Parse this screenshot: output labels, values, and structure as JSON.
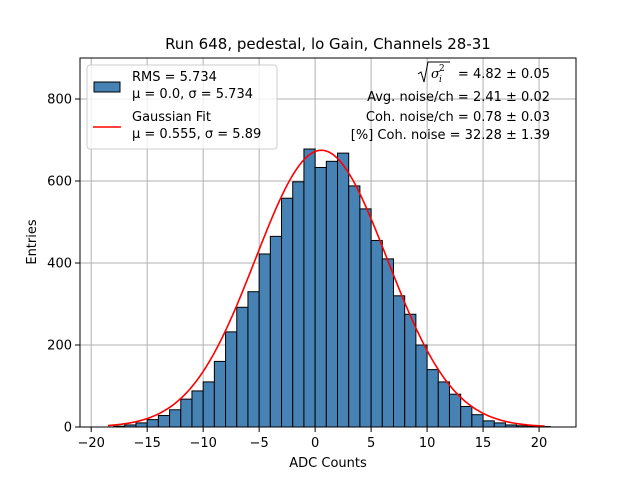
{
  "chart_data": {
    "type": "bar",
    "title": "Run 648, pedestal, lo Gain, Channels 28-31",
    "xlabel": "ADC Counts",
    "ylabel": "Entries",
    "xlim": [
      -21,
      23.3
    ],
    "ylim": [
      0,
      900
    ],
    "xticks": [
      -20,
      -15,
      -10,
      -5,
      0,
      5,
      10,
      15,
      20
    ],
    "yticks": [
      0,
      200,
      400,
      600,
      800
    ],
    "grid": true,
    "legend_position": "top-left",
    "histogram": {
      "name": "RMS = 5.734",
      "stats_label": "μ = 0.0, σ = 5.734",
      "color": "#4682b4",
      "bin_start": -18,
      "bin_width": 1,
      "counts": [
        2,
        5,
        10,
        18,
        28,
        42,
        68,
        88,
        110,
        160,
        232,
        292,
        330,
        422,
        465,
        558,
        598,
        678,
        633,
        648,
        668,
        588,
        532,
        455,
        410,
        320,
        275,
        200,
        140,
        110,
        80,
        50,
        30,
        15,
        10,
        5,
        3,
        2,
        1
      ]
    },
    "fit": {
      "name": "Gaussian Fit",
      "stats_label": "μ = 0.555, σ = 5.89",
      "color": "#ff0000",
      "mu": 0.555,
      "sigma": 5.89,
      "amplitude": 675,
      "x_range": [
        -18.5,
        20.5
      ]
    },
    "annotations": {
      "sqrt_sigma": "= 4.82 ± 0.05",
      "avg_noise": "Avg. noise/ch = 2.41 ± 0.02",
      "coh_noise": "Coh. noise/ch = 0.78 ± 0.03",
      "coh_pct": "[%] Coh. noise = 32.28 ± 1.39"
    }
  }
}
